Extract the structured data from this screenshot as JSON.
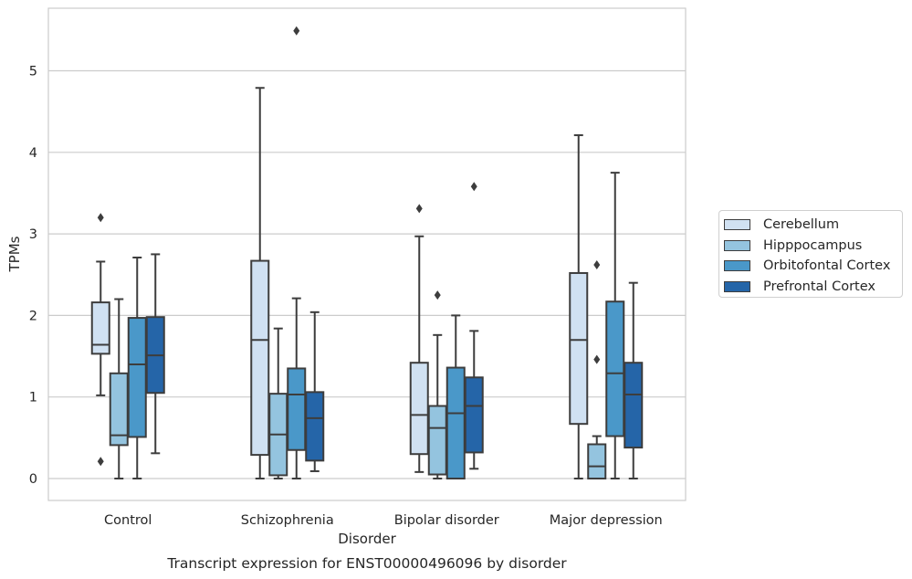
{
  "chart_data": {
    "type": "boxplot",
    "title": "Transcript expression for ENST00000496096 by disorder",
    "xlabel": "Disorder",
    "ylabel": "TPMs",
    "ylim": [
      -0.27,
      5.77
    ],
    "yticks": [
      0,
      1,
      2,
      3,
      4,
      5
    ],
    "grid": "horizontal",
    "legend_position": "right",
    "categories": [
      "Control",
      "Schizophrenia",
      "Bipolar disorder",
      "Major depression"
    ],
    "series": [
      {
        "name": "Cerebellum",
        "color": "#d0e1f2",
        "boxes": [
          {
            "whisker_low": 1.02,
            "q1": 1.53,
            "median": 1.64,
            "q3": 2.16,
            "whisker_high": 2.66,
            "outliers": [
              3.2,
              0.21
            ]
          },
          {
            "whisker_low": 0.0,
            "q1": 0.29,
            "median": 1.7,
            "q3": 2.67,
            "whisker_high": 4.79,
            "outliers": []
          },
          {
            "whisker_low": 0.08,
            "q1": 0.3,
            "median": 0.78,
            "q3": 1.42,
            "whisker_high": 2.97,
            "outliers": [
              3.31
            ]
          },
          {
            "whisker_low": 0.0,
            "q1": 0.67,
            "median": 1.7,
            "q3": 2.52,
            "whisker_high": 4.21,
            "outliers": []
          }
        ]
      },
      {
        "name": "Hipppocampus",
        "color": "#94c4df",
        "boxes": [
          {
            "whisker_low": 0.0,
            "q1": 0.41,
            "median": 0.53,
            "q3": 1.29,
            "whisker_high": 2.2,
            "outliers": []
          },
          {
            "whisker_low": 0.0,
            "q1": 0.04,
            "median": 0.54,
            "q3": 1.04,
            "whisker_high": 1.84,
            "outliers": []
          },
          {
            "whisker_low": 0.0,
            "q1": 0.05,
            "median": 0.62,
            "q3": 0.89,
            "whisker_high": 1.76,
            "outliers": [
              2.25
            ]
          },
          {
            "whisker_low": 0.0,
            "q1": 0.0,
            "median": 0.15,
            "q3": 0.42,
            "whisker_high": 0.52,
            "outliers": [
              2.62,
              1.46
            ]
          }
        ]
      },
      {
        "name": "Orbitofontal Cortex",
        "color": "#4a98c9",
        "boxes": [
          {
            "whisker_low": 0.0,
            "q1": 0.51,
            "median": 1.4,
            "q3": 1.97,
            "whisker_high": 2.71,
            "outliers": []
          },
          {
            "whisker_low": 0.0,
            "q1": 0.35,
            "median": 1.03,
            "q3": 1.35,
            "whisker_high": 2.21,
            "outliers": [
              5.49
            ]
          },
          {
            "whisker_low": 0.0,
            "q1": 0.0,
            "median": 0.8,
            "q3": 1.36,
            "whisker_high": 2.0,
            "outliers": []
          },
          {
            "whisker_low": 0.0,
            "q1": 0.52,
            "median": 1.29,
            "q3": 2.17,
            "whisker_high": 3.75,
            "outliers": []
          }
        ]
      },
      {
        "name": "Prefrontal Cortex",
        "color": "#2565a8",
        "boxes": [
          {
            "whisker_low": 0.31,
            "q1": 1.05,
            "median": 1.51,
            "q3": 1.98,
            "whisker_high": 2.75,
            "outliers": []
          },
          {
            "whisker_low": 0.09,
            "q1": 0.22,
            "median": 0.74,
            "q3": 1.06,
            "whisker_high": 2.04,
            "outliers": []
          },
          {
            "whisker_low": 0.12,
            "q1": 0.32,
            "median": 0.89,
            "q3": 1.24,
            "whisker_high": 1.81,
            "outliers": [
              3.58
            ]
          },
          {
            "whisker_low": 0.0,
            "q1": 0.38,
            "median": 1.03,
            "q3": 1.42,
            "whisker_high": 2.4,
            "outliers": []
          }
        ]
      }
    ]
  }
}
